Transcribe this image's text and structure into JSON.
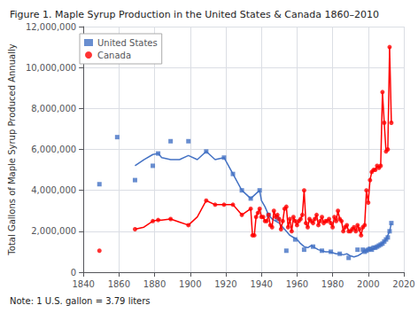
{
  "chart_data": {
    "type": "scatter",
    "title": "Figure 1. Maple Syrup Production in the United States & Canada 1860–2010",
    "annotations": [
      "Note: 1 U.S. gallon = 3.79 liters"
    ],
    "ylabel": "Total Gallons of Maple Syrup Produced Annually",
    "xlim": [
      1840,
      2020
    ],
    "xticks": [
      1840,
      1860,
      1880,
      1900,
      1920,
      1940,
      1960,
      1980,
      2000,
      2020
    ],
    "ylim": [
      0,
      12000000
    ],
    "yticks": [
      0,
      {
        "value": 2000000,
        "label": "2,000,000"
      },
      {
        "value": 4000000,
        "label": "4,000,000"
      },
      {
        "value": 6000000,
        "label": "6,000,000"
      },
      {
        "value": 8000000,
        "label": "8,000,000"
      },
      {
        "value": 10000000,
        "label": "10,000,000"
      },
      {
        "value": 12000000,
        "label": "12,000,000"
      }
    ],
    "grid": true,
    "legend": "upper left",
    "series": [
      {
        "name": "United States",
        "type": "scatter",
        "marker": "square",
        "color": "#4472C4",
        "x": [
          1849,
          1859,
          1869,
          1879,
          1882,
          1889,
          1899,
          1909,
          1919,
          1924,
          1929,
          1934,
          1939,
          1944,
          1949,
          1954,
          1959,
          1964,
          1969,
          1974,
          1979,
          1984,
          1989,
          1994,
          1997,
          1998,
          1999,
          2000,
          2001,
          2002,
          2003,
          2004,
          2005,
          2006,
          2007,
          2008,
          2009,
          2010,
          2011,
          2012,
          2013
        ],
        "values": [
          4300000,
          6600000,
          4500000,
          5200000,
          5800000,
          6400000,
          6400000,
          5900000,
          5600000,
          4800000,
          4000000,
          3600000,
          4000000,
          2800000,
          2600000,
          1050000,
          1600000,
          1100000,
          1250000,
          1050000,
          1000000,
          900000,
          700000,
          1100000,
          1100000,
          1000000,
          1050000,
          1100000,
          1150000,
          1100000,
          1200000,
          1200000,
          1250000,
          1300000,
          1350000,
          1400000,
          1500000,
          1600000,
          1700000,
          2000000,
          2400000
        ]
      },
      {
        "type": "line",
        "color": "#4472C4",
        "x": [
          1869,
          1874,
          1879,
          1882,
          1884,
          1889,
          1894,
          1899,
          1904,
          1909,
          1914,
          1919,
          1924,
          1929,
          1934,
          1939,
          1940,
          1942,
          1944,
          1946,
          1948,
          1950,
          1952,
          1954,
          1956,
          1958,
          1960,
          1962,
          1964,
          1966,
          1968,
          1970,
          1972,
          1974,
          1976,
          1978,
          1980,
          1982,
          1984,
          1986,
          1988,
          1990,
          1992,
          1994,
          1996,
          1998,
          2000,
          2002,
          2004,
          2006,
          2008,
          2010,
          2012,
          2013
        ],
        "values": [
          5200000,
          5500000,
          5750000,
          5800000,
          5600000,
          5500000,
          5500000,
          5700000,
          5500000,
          5900000,
          5500000,
          5600000,
          4800000,
          4000000,
          3600000,
          4000000,
          3500000,
          3200000,
          2800000,
          2600000,
          2500000,
          2400000,
          2200000,
          2000000,
          1800000,
          1700000,
          1600000,
          1400000,
          1250000,
          1200000,
          1300000,
          1200000,
          1100000,
          1050000,
          1000000,
          1000000,
          950000,
          900000,
          900000,
          850000,
          900000,
          800000,
          750000,
          800000,
          900000,
          1050000,
          1100000,
          1100000,
          1200000,
          1300000,
          1400000,
          1600000,
          2000000,
          2400000
        ]
      },
      {
        "name": "Canada",
        "type": "scatter",
        "marker": "circle",
        "color": "#FF0000",
        "x": [
          1849,
          1869,
          1879,
          1882,
          1889,
          1899,
          1909,
          1914,
          1919,
          1924,
          1929,
          1934,
          1935,
          1936,
          1937,
          1938,
          1939,
          1940,
          1941,
          1942,
          1943,
          1944,
          1945,
          1946,
          1947,
          1948,
          1949,
          1950,
          1951,
          1952,
          1953,
          1954,
          1955,
          1956,
          1957,
          1958,
          1959,
          1960,
          1961,
          1962,
          1963,
          1964,
          1965,
          1966,
          1967,
          1968,
          1969,
          1970,
          1971,
          1972,
          1973,
          1974,
          1975,
          1976,
          1977,
          1978,
          1979,
          1980,
          1981,
          1982,
          1983,
          1984,
          1985,
          1986,
          1987,
          1988,
          1989,
          1990,
          1991,
          1992,
          1993,
          1994,
          1995,
          1996,
          1997,
          1998,
          1999,
          2000,
          2001,
          2002,
          2003,
          2004,
          2005,
          2006,
          2007,
          2008,
          2009,
          2010,
          2011,
          2012,
          2013
        ],
        "values": [
          1050000,
          2100000,
          2500000,
          2550000,
          2600000,
          2300000,
          3500000,
          3300000,
          3300000,
          3300000,
          2800000,
          3100000,
          1800000,
          1800000,
          2700000,
          2900000,
          3100000,
          2700000,
          2700000,
          2500000,
          2500000,
          2800000,
          2300000,
          2200000,
          3000000,
          2700000,
          2800000,
          2600000,
          2100000,
          2500000,
          3100000,
          3200000,
          2200000,
          2600000,
          2000000,
          2700000,
          2500000,
          2300000,
          2500000,
          2600000,
          2800000,
          4000000,
          2400000,
          2200000,
          2600000,
          2500000,
          2400000,
          2600000,
          2800000,
          2300000,
          2500000,
          2700000,
          2400000,
          2500000,
          2500000,
          2600000,
          2400000,
          2200000,
          2700000,
          2500000,
          3000000,
          2600000,
          2500000,
          2000000,
          2200000,
          2300000,
          2000000,
          2000000,
          2100000,
          2200000,
          2000000,
          2300000,
          2100000,
          1800000,
          2200000,
          2300000,
          4000000,
          3400000,
          4500000,
          4900000,
          5000000,
          5000000,
          5200000,
          5100000,
          5200000,
          8800000,
          7300000,
          5900000,
          6000000,
          11000000,
          7300000
        ]
      },
      {
        "type": "line",
        "color": "#FF0000",
        "x": [
          1869,
          1874,
          1879,
          1882,
          1884,
          1889,
          1894,
          1899,
          1904,
          1909,
          1914,
          1919,
          1924,
          1929,
          1934,
          1935,
          1936,
          1937,
          1938,
          1939,
          1940,
          1941,
          1942,
          1943,
          1944,
          1945,
          1946,
          1947,
          1948,
          1949,
          1950,
          1951,
          1952,
          1953,
          1954,
          1955,
          1956,
          1957,
          1958,
          1959,
          1960,
          1961,
          1962,
          1963,
          1964,
          1965,
          1966,
          1967,
          1968,
          1969,
          1970,
          1971,
          1972,
          1973,
          1974,
          1975,
          1976,
          1977,
          1978,
          1979,
          1980,
          1981,
          1982,
          1983,
          1984,
          1985,
          1986,
          1987,
          1988,
          1989,
          1990,
          1991,
          1992,
          1993,
          1994,
          1995,
          1996,
          1997,
          1998,
          1999,
          2000,
          2001,
          2002,
          2003,
          2004,
          2005,
          2006,
          2007,
          2008,
          2009,
          2010,
          2011,
          2012,
          2013
        ],
        "values": [
          2100000,
          2200000,
          2500000,
          2550000,
          2550000,
          2600000,
          2450000,
          2300000,
          2700000,
          3500000,
          3300000,
          3300000,
          3300000,
          2800000,
          3100000,
          1800000,
          1800000,
          2700000,
          2900000,
          3100000,
          2700000,
          2700000,
          2500000,
          2500000,
          2800000,
          2300000,
          2200000,
          3000000,
          2700000,
          2800000,
          2600000,
          2100000,
          2500000,
          3100000,
          3200000,
          2200000,
          2600000,
          2000000,
          2700000,
          2500000,
          2300000,
          2500000,
          2600000,
          2800000,
          4000000,
          2400000,
          2200000,
          2600000,
          2500000,
          2400000,
          2600000,
          2800000,
          2300000,
          2500000,
          2700000,
          2400000,
          2500000,
          2500000,
          2600000,
          2400000,
          2200000,
          2700000,
          2500000,
          3000000,
          2600000,
          2500000,
          2000000,
          2200000,
          2300000,
          2000000,
          2000000,
          2100000,
          2200000,
          2000000,
          2300000,
          2100000,
          1800000,
          2200000,
          2300000,
          4000000,
          3400000,
          4500000,
          4900000,
          5000000,
          5000000,
          5200000,
          5100000,
          5200000,
          8800000,
          7300000,
          5900000,
          6000000,
          11000000,
          7300000
        ]
      }
    ]
  }
}
